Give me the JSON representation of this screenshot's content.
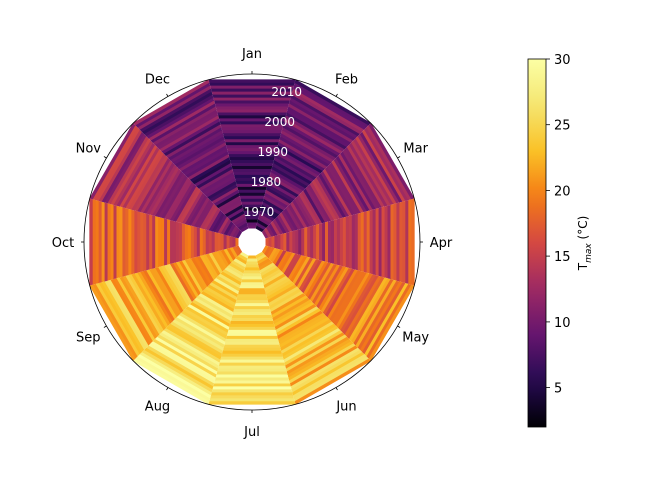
{
  "chart_data": {
    "type": "polar-heatmap",
    "theta_labels": [
      "Jan",
      "Feb",
      "Mar",
      "Apr",
      "May",
      "Jun",
      "Jul",
      "Aug",
      "Sep",
      "Oct",
      "Nov",
      "Dec"
    ],
    "radial_ticks": [
      "1970",
      "1980",
      "1990",
      "2000",
      "2010"
    ],
    "years": [
      1965,
      2014
    ],
    "colorbar": {
      "label": "T",
      "label_sub": "max",
      "label_unit": " (°C)",
      "ticks": [
        "5",
        "10",
        "15",
        "20",
        "25",
        "30"
      ],
      "vmin": 2,
      "vmax": 30,
      "colormap": "inferno"
    },
    "monthly_mean_tmax": [
      {
        "month": "Jan",
        "value": 7.5
      },
      {
        "month": "Feb",
        "value": 8.5
      },
      {
        "month": "Mar",
        "value": 11.5
      },
      {
        "month": "Apr",
        "value": 15
      },
      {
        "month": "May",
        "value": 19
      },
      {
        "month": "Jun",
        "value": 23
      },
      {
        "month": "Jul",
        "value": 26
      },
      {
        "month": "Aug",
        "value": 26
      },
      {
        "month": "Sep",
        "value": 22
      },
      {
        "month": "Oct",
        "value": 17
      },
      {
        "month": "Nov",
        "value": 12
      },
      {
        "month": "Dec",
        "value": 8.5
      }
    ]
  }
}
